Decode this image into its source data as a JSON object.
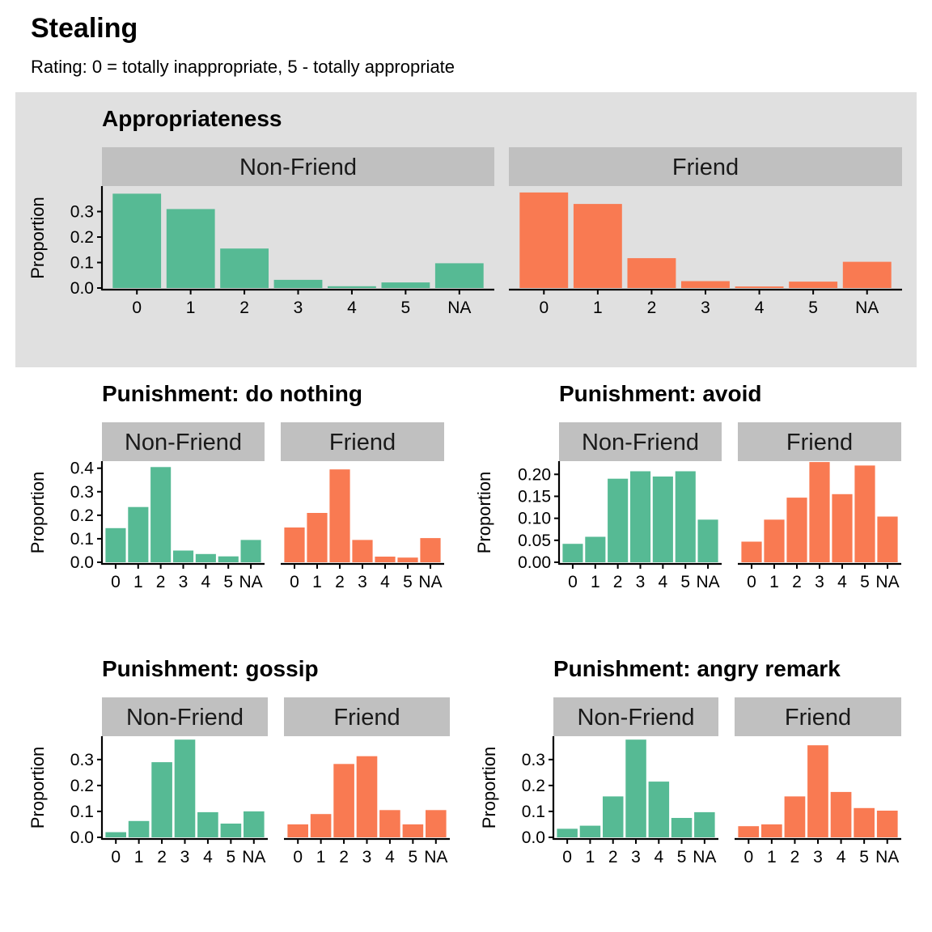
{
  "title": "Stealing",
  "subtitle": "Rating: 0 = totally inappropriate, 5 - totally appropriate",
  "colors": {
    "non_friend": "#56BA94",
    "friend": "#F97A52",
    "strip": "#C0C0C0",
    "highlight_bg": "#E0E0E0"
  },
  "chart_data": [
    {
      "id": "appropriateness",
      "type": "bar",
      "title": "Appropriateness",
      "ylabel": "Proportion",
      "ylim": [
        0,
        0.4
      ],
      "yticks": [
        "0.0",
        "0.1",
        "0.2",
        "0.3"
      ],
      "yticks_values": [
        0,
        0.1,
        0.2,
        0.3
      ],
      "categories": [
        "0",
        "1",
        "2",
        "3",
        "4",
        "5",
        "NA"
      ],
      "highlighted": true,
      "series": [
        {
          "name": "Non-Friend",
          "values": [
            0.37,
            0.31,
            0.155,
            0.032,
            0.007,
            0.022,
            0.097
          ]
        },
        {
          "name": "Friend",
          "values": [
            0.375,
            0.33,
            0.117,
            0.027,
            0.006,
            0.025,
            0.103
          ]
        }
      ]
    },
    {
      "id": "do_nothing",
      "type": "bar",
      "title": "Punishment: do nothing",
      "ylabel": "Proportion",
      "ylim": [
        0,
        0.43
      ],
      "yticks": [
        "0.0",
        "0.1",
        "0.2",
        "0.3",
        "0.4"
      ],
      "yticks_values": [
        0,
        0.1,
        0.2,
        0.3,
        0.4
      ],
      "categories": [
        "0",
        "1",
        "2",
        "3",
        "4",
        "5",
        "NA"
      ],
      "series": [
        {
          "name": "Non-Friend",
          "values": [
            0.145,
            0.235,
            0.405,
            0.05,
            0.035,
            0.025,
            0.095
          ]
        },
        {
          "name": "Friend",
          "values": [
            0.148,
            0.21,
            0.395,
            0.095,
            0.024,
            0.02,
            0.103
          ]
        }
      ]
    },
    {
      "id": "avoid",
      "type": "bar",
      "title": "Punishment: avoid",
      "ylabel": "Proportion",
      "ylim": [
        0,
        0.23
      ],
      "yticks": [
        "0.00",
        "0.05",
        "0.10",
        "0.15",
        "0.20"
      ],
      "yticks_values": [
        0,
        0.05,
        0.1,
        0.15,
        0.2
      ],
      "categories": [
        "0",
        "1",
        "2",
        "3",
        "4",
        "5",
        "NA"
      ],
      "series": [
        {
          "name": "Non-Friend",
          "values": [
            0.042,
            0.058,
            0.19,
            0.207,
            0.195,
            0.207,
            0.097
          ]
        },
        {
          "name": "Friend",
          "values": [
            0.047,
            0.097,
            0.147,
            0.228,
            0.155,
            0.22,
            0.104
          ]
        }
      ]
    },
    {
      "id": "gossip",
      "type": "bar",
      "title": "Punishment: gossip",
      "ylabel": "Proportion",
      "ylim": [
        0,
        0.39
      ],
      "yticks": [
        "0.0",
        "0.1",
        "0.2",
        "0.3"
      ],
      "yticks_values": [
        0,
        0.1,
        0.2,
        0.3
      ],
      "categories": [
        "0",
        "1",
        "2",
        "3",
        "4",
        "5",
        "NA"
      ],
      "series": [
        {
          "name": "Non-Friend",
          "values": [
            0.02,
            0.063,
            0.29,
            0.377,
            0.097,
            0.053,
            0.1
          ]
        },
        {
          "name": "Friend",
          "values": [
            0.05,
            0.09,
            0.283,
            0.313,
            0.105,
            0.05,
            0.105
          ]
        }
      ]
    },
    {
      "id": "angry_remark",
      "type": "bar",
      "title": "Punishment: angry remark",
      "ylabel": "Proportion",
      "ylim": [
        0,
        0.39
      ],
      "yticks": [
        "0.0",
        "0.1",
        "0.2",
        "0.3"
      ],
      "yticks_values": [
        0,
        0.1,
        0.2,
        0.3
      ],
      "categories": [
        "0",
        "1",
        "2",
        "3",
        "4",
        "5",
        "NA"
      ],
      "series": [
        {
          "name": "Non-Friend",
          "values": [
            0.033,
            0.045,
            0.158,
            0.377,
            0.215,
            0.075,
            0.097
          ]
        },
        {
          "name": "Friend",
          "values": [
            0.043,
            0.05,
            0.158,
            0.355,
            0.175,
            0.113,
            0.103
          ]
        }
      ]
    }
  ]
}
